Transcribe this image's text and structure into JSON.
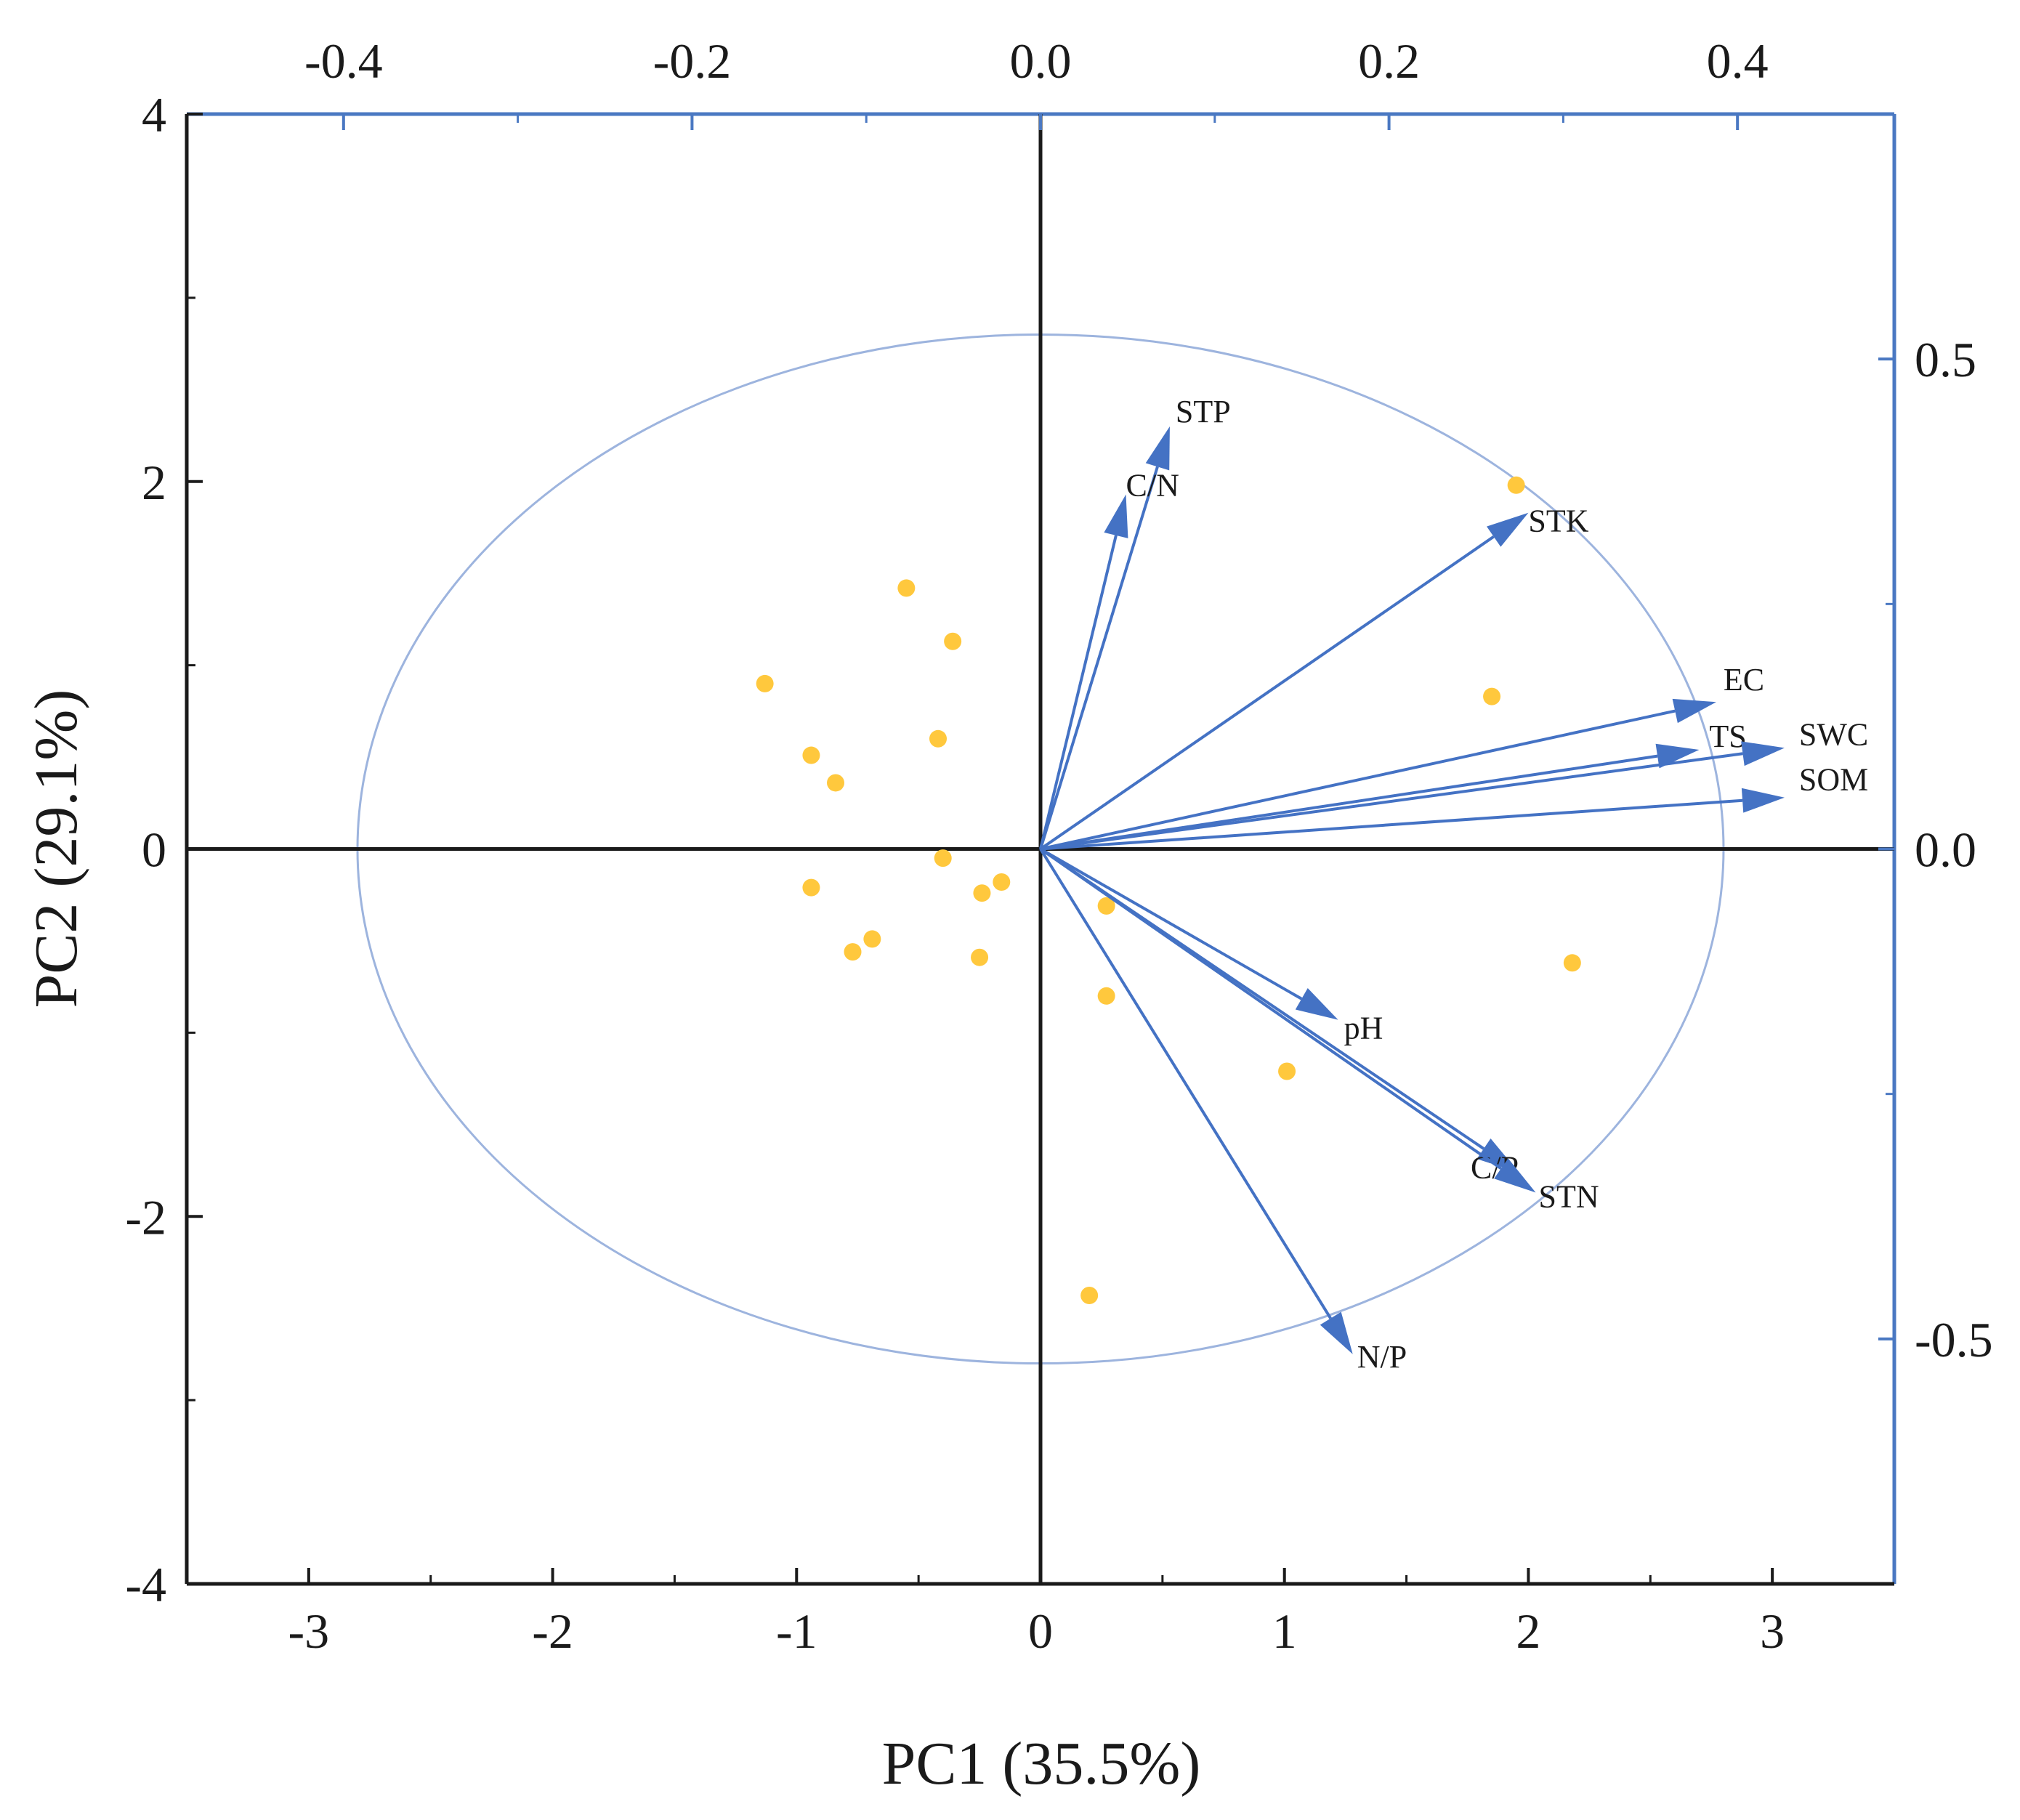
{
  "chart_data": {
    "type": "biplot",
    "xlabel": "PC1 (35.5%)",
    "ylabel": "PC2 (29.1%)",
    "xlim": [
      -3.5,
      3.5
    ],
    "ylim": [
      -4,
      4
    ],
    "x_ticks": [
      -3,
      -2,
      -1,
      0,
      1,
      2,
      3
    ],
    "y_ticks": [
      -4,
      -2,
      0,
      2,
      4
    ],
    "x_tick_labels": [
      "-3",
      "-2",
      "-1",
      "0",
      "1",
      "2",
      "3"
    ],
    "y_tick_labels": [
      "-4",
      "-2",
      "0",
      "2",
      "4"
    ],
    "top_axis": {
      "lim": [
        -0.49,
        0.49
      ],
      "ticks": [
        -0.4,
        -0.2,
        0.0,
        0.2,
        0.4
      ],
      "tick_labels": [
        "-0.4",
        "-0.2",
        "0.0",
        "0.2",
        "0.4"
      ]
    },
    "right_axis": {
      "lim": [
        -0.75,
        0.75
      ],
      "ticks": [
        -0.5,
        0.0,
        0.5
      ],
      "tick_labels": [
        "-0.5",
        "0.0",
        "0.5"
      ]
    },
    "circle_radius": 2.8,
    "scores": [
      {
        "x": -1.13,
        "y": 0.9
      },
      {
        "x": -0.55,
        "y": 1.42
      },
      {
        "x": -0.36,
        "y": 1.13
      },
      {
        "x": -0.94,
        "y": 0.51
      },
      {
        "x": -0.42,
        "y": 0.6
      },
      {
        "x": -0.84,
        "y": 0.36
      },
      {
        "x": -0.4,
        "y": -0.05
      },
      {
        "x": -0.94,
        "y": -0.21
      },
      {
        "x": -0.24,
        "y": -0.24
      },
      {
        "x": -0.16,
        "y": -0.18
      },
      {
        "x": -0.69,
        "y": -0.49
      },
      {
        "x": -0.77,
        "y": -0.56
      },
      {
        "x": -0.25,
        "y": -0.59
      },
      {
        "x": 0.27,
        "y": -0.31
      },
      {
        "x": 0.27,
        "y": -0.8
      },
      {
        "x": 1.01,
        "y": -1.21
      },
      {
        "x": 0.2,
        "y": -2.43
      },
      {
        "x": 1.95,
        "y": 1.98
      },
      {
        "x": 1.85,
        "y": 0.83
      },
      {
        "x": 2.18,
        "y": -0.62
      }
    ],
    "loadings": [
      {
        "name": "STP",
        "x": 0.53,
        "y": 2.3
      },
      {
        "name": "C/N",
        "x": 0.35,
        "y": 1.93
      },
      {
        "name": "STK",
        "x": 2.0,
        "y": 1.83
      },
      {
        "name": "EC",
        "x": 2.77,
        "y": 0.8
      },
      {
        "name": "TS",
        "x": 2.7,
        "y": 0.54
      },
      {
        "name": "SWC",
        "x": 3.05,
        "y": 0.55
      },
      {
        "name": "SOM",
        "x": 3.05,
        "y": 0.28
      },
      {
        "name": "pH",
        "x": 1.22,
        "y": -0.93
      },
      {
        "name": "C/P",
        "x": 1.96,
        "y": -1.76
      },
      {
        "name": "STN",
        "x": 2.03,
        "y": -1.87
      },
      {
        "name": "N/P",
        "x": 1.28,
        "y": -2.75
      }
    ],
    "colors": {
      "score_points": "#ffc83d",
      "loading_arrows": "#4472c4",
      "circle": "#9db4de",
      "secondary_axes": "#4a78c2",
      "primary_axes": "#1a1a1a"
    }
  }
}
